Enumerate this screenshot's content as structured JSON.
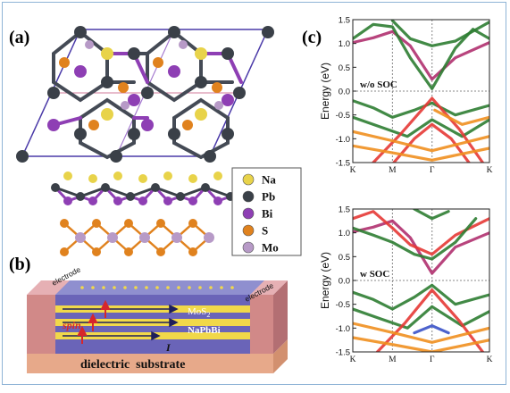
{
  "panels": {
    "a": {
      "label": "(a)"
    },
    "b": {
      "label": "(b)"
    },
    "c": {
      "label": "(c)"
    }
  },
  "legend": {
    "items": [
      {
        "name": "Na",
        "color": "#e8d34a"
      },
      {
        "name": "Pb",
        "color": "#3a4048"
      },
      {
        "name": "Bi",
        "color": "#8e3fb4"
      },
      {
        "name": "S",
        "color": "#e0821e"
      },
      {
        "name": "Mo",
        "color": "#b79ac7"
      }
    ]
  },
  "device": {
    "electrode_left": "electrode",
    "electrode_right": "electrode",
    "spin": "spin",
    "mos2": "MoS",
    "mos2_sub": "2",
    "napbbi": "NaPbBi",
    "current": "I",
    "substrate": "dielectric  substrate"
  },
  "chart_data": [
    {
      "type": "line",
      "annotation": "w/o SOC",
      "ylabel": "Energy (eV)",
      "ylim": [
        -1.5,
        1.5
      ],
      "yticks": [
        "1.5",
        "1.0",
        "0.5",
        "0.0",
        "-0.5",
        "-1.0",
        "-1.5"
      ],
      "xticks": [
        "K",
        "M",
        "Γ",
        "K"
      ]
    },
    {
      "type": "line",
      "annotation": "w SOC",
      "ylabel": "Energy (eV)",
      "ylim": [
        -1.5,
        1.5
      ],
      "yticks": [
        "1.5",
        "1.0",
        "0.5",
        "0.0",
        "-0.5",
        "-1.0",
        "-1.5"
      ],
      "xticks": [
        "K",
        "M",
        "Γ",
        "K"
      ]
    }
  ],
  "colors": {
    "frame": "#8fb4d6",
    "green_band": "#2e7d32",
    "red_band": "#e53935",
    "orange_band": "#ef8f1f",
    "magenta_band": "#b0306f",
    "blue_band": "#3a52c8"
  }
}
